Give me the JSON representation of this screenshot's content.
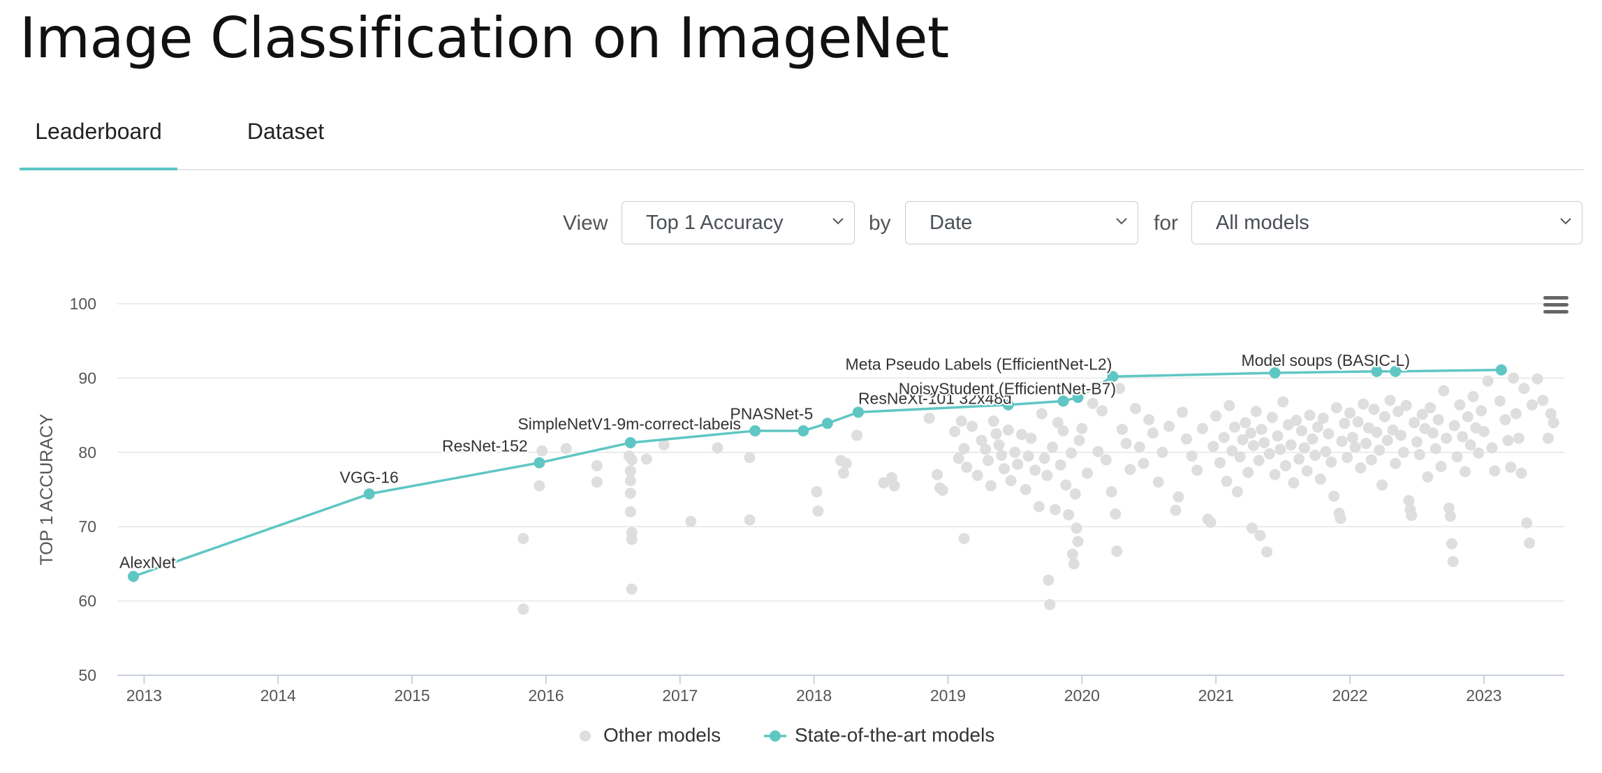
{
  "page": {
    "title": "Image Classification on ImageNet"
  },
  "tabs": [
    {
      "label": "Leaderboard",
      "active": true
    },
    {
      "label": "Dataset",
      "active": false
    }
  ],
  "controls": {
    "view_label": "View",
    "view_value": "Top 1 Accuracy",
    "by_label": "by",
    "by_value": "Date",
    "for_label": "for",
    "for_value": "All models"
  },
  "colors": {
    "accent": "#5fc6c4",
    "other": "#dedede",
    "grid": "#e6e6e6",
    "axis": "#c8cfe0"
  },
  "chart_data": {
    "type": "scatter",
    "title": "",
    "ylabel": "TOP 1 ACCURACY",
    "xlabel": "",
    "xlim": [
      2012.8,
      2023.6
    ],
    "ylim": [
      50,
      100
    ],
    "x_ticks": [
      2013,
      2014,
      2015,
      2016,
      2017,
      2018,
      2019,
      2020,
      2021,
      2022,
      2023
    ],
    "x_tick_labels": [
      "2013",
      "2014",
      "2015",
      "2016",
      "2017",
      "2018",
      "2019",
      "2020",
      "2021",
      "2022",
      "2023"
    ],
    "y_ticks": [
      50,
      60,
      70,
      80,
      90,
      100
    ],
    "y_tick_labels": [
      "50",
      "60",
      "70",
      "80",
      "90",
      "100"
    ],
    "grid": true,
    "legend_position": "bottom",
    "series": [
      {
        "name": "Other models",
        "color": "#dedede",
        "points": [
          [
            2015.83,
            68.4
          ],
          [
            2015.83,
            58.9
          ],
          [
            2015.95,
            75.5
          ],
          [
            2015.97,
            80.2
          ],
          [
            2016.15,
            80.5
          ],
          [
            2016.38,
            78.2
          ],
          [
            2016.38,
            76.0
          ],
          [
            2016.62,
            79.5
          ],
          [
            2016.63,
            77.5
          ],
          [
            2016.63,
            76.2
          ],
          [
            2016.63,
            74.5
          ],
          [
            2016.63,
            72.0
          ],
          [
            2016.64,
            69.2
          ],
          [
            2016.64,
            68.3
          ],
          [
            2016.64,
            61.6
          ],
          [
            2016.64,
            79.0
          ],
          [
            2016.75,
            79.1
          ],
          [
            2016.88,
            81.0
          ],
          [
            2017.08,
            70.7
          ],
          [
            2017.28,
            80.6
          ],
          [
            2017.52,
            70.9
          ],
          [
            2017.52,
            79.3
          ],
          [
            2018.02,
            74.7
          ],
          [
            2018.03,
            72.1
          ],
          [
            2018.2,
            78.9
          ],
          [
            2018.22,
            77.2
          ],
          [
            2018.24,
            78.5
          ],
          [
            2018.32,
            82.3
          ],
          [
            2018.52,
            75.9
          ],
          [
            2018.58,
            76.6
          ],
          [
            2018.6,
            75.5
          ],
          [
            2018.86,
            84.6
          ],
          [
            2018.92,
            77.0
          ],
          [
            2018.94,
            75.2
          ],
          [
            2018.96,
            74.9
          ],
          [
            2019.05,
            82.8
          ],
          [
            2019.08,
            79.2
          ],
          [
            2019.12,
            68.4
          ],
          [
            2019.1,
            84.2
          ],
          [
            2019.12,
            80.5
          ],
          [
            2019.14,
            78.0
          ],
          [
            2019.18,
            83.5
          ],
          [
            2019.22,
            76.9
          ],
          [
            2019.25,
            81.6
          ],
          [
            2019.28,
            80.4
          ],
          [
            2019.3,
            78.9
          ],
          [
            2019.32,
            75.5
          ],
          [
            2019.34,
            84.2
          ],
          [
            2019.36,
            82.5
          ],
          [
            2019.38,
            81.0
          ],
          [
            2019.4,
            79.6
          ],
          [
            2019.42,
            77.8
          ],
          [
            2019.45,
            83.0
          ],
          [
            2019.47,
            76.2
          ],
          [
            2019.5,
            80.0
          ],
          [
            2019.52,
            78.4
          ],
          [
            2019.55,
            82.4
          ],
          [
            2019.58,
            75.0
          ],
          [
            2019.6,
            79.5
          ],
          [
            2019.62,
            81.9
          ],
          [
            2019.65,
            77.6
          ],
          [
            2019.68,
            72.7
          ],
          [
            2019.7,
            85.2
          ],
          [
            2019.72,
            79.2
          ],
          [
            2019.74,
            76.9
          ],
          [
            2019.75,
            62.8
          ],
          [
            2019.76,
            59.5
          ],
          [
            2019.78,
            80.7
          ],
          [
            2019.8,
            72.3
          ],
          [
            2019.82,
            84.0
          ],
          [
            2019.84,
            78.3
          ],
          [
            2019.86,
            82.9
          ],
          [
            2019.88,
            75.6
          ],
          [
            2019.9,
            71.6
          ],
          [
            2019.92,
            79.9
          ],
          [
            2019.93,
            66.3
          ],
          [
            2019.94,
            65.0
          ],
          [
            2019.95,
            74.4
          ],
          [
            2019.96,
            69.8
          ],
          [
            2019.97,
            68.0
          ],
          [
            2019.98,
            81.6
          ],
          [
            2020.0,
            83.2
          ],
          [
            2020.04,
            77.2
          ],
          [
            2020.08,
            86.6
          ],
          [
            2020.12,
            80.1
          ],
          [
            2020.15,
            85.6
          ],
          [
            2020.18,
            79.0
          ],
          [
            2020.22,
            74.7
          ],
          [
            2020.25,
            71.7
          ],
          [
            2020.26,
            66.7
          ],
          [
            2020.28,
            88.6
          ],
          [
            2020.3,
            83.1
          ],
          [
            2020.33,
            81.2
          ],
          [
            2020.36,
            77.7
          ],
          [
            2020.4,
            85.9
          ],
          [
            2020.43,
            80.7
          ],
          [
            2020.46,
            78.5
          ],
          [
            2020.5,
            84.4
          ],
          [
            2020.53,
            82.6
          ],
          [
            2020.57,
            76.0
          ],
          [
            2020.6,
            80.0
          ],
          [
            2020.65,
            83.5
          ],
          [
            2020.7,
            72.2
          ],
          [
            2020.72,
            74.0
          ],
          [
            2020.75,
            85.4
          ],
          [
            2020.78,
            81.8
          ],
          [
            2020.82,
            79.5
          ],
          [
            2020.86,
            77.6
          ],
          [
            2020.9,
            83.2
          ],
          [
            2020.94,
            71.0
          ],
          [
            2020.96,
            70.6
          ],
          [
            2020.98,
            80.8
          ],
          [
            2021.0,
            84.9
          ],
          [
            2021.03,
            78.6
          ],
          [
            2021.06,
            82.0
          ],
          [
            2021.08,
            76.1
          ],
          [
            2021.1,
            86.3
          ],
          [
            2021.12,
            80.2
          ],
          [
            2021.14,
            83.4
          ],
          [
            2021.16,
            74.7
          ],
          [
            2021.18,
            79.4
          ],
          [
            2021.2,
            81.7
          ],
          [
            2021.22,
            84.0
          ],
          [
            2021.24,
            77.3
          ],
          [
            2021.26,
            82.6
          ],
          [
            2021.27,
            69.8
          ],
          [
            2021.28,
            80.9
          ],
          [
            2021.3,
            85.5
          ],
          [
            2021.32,
            78.9
          ],
          [
            2021.33,
            68.8
          ],
          [
            2021.34,
            83.1
          ],
          [
            2021.36,
            81.3
          ],
          [
            2021.38,
            66.6
          ],
          [
            2021.4,
            79.8
          ],
          [
            2021.42,
            84.7
          ],
          [
            2021.44,
            77.0
          ],
          [
            2021.46,
            82.2
          ],
          [
            2021.48,
            80.4
          ],
          [
            2021.5,
            86.8
          ],
          [
            2021.52,
            78.2
          ],
          [
            2021.54,
            83.7
          ],
          [
            2021.56,
            81.0
          ],
          [
            2021.58,
            75.9
          ],
          [
            2021.6,
            84.3
          ],
          [
            2021.62,
            79.1
          ],
          [
            2021.64,
            82.9
          ],
          [
            2021.66,
            80.6
          ],
          [
            2021.68,
            77.5
          ],
          [
            2021.7,
            85.0
          ],
          [
            2021.72,
            81.8
          ],
          [
            2021.74,
            79.6
          ],
          [
            2021.76,
            83.4
          ],
          [
            2021.78,
            76.4
          ],
          [
            2021.8,
            84.6
          ],
          [
            2021.82,
            80.1
          ],
          [
            2021.84,
            82.5
          ],
          [
            2021.86,
            78.7
          ],
          [
            2021.88,
            74.1
          ],
          [
            2021.9,
            86.0
          ],
          [
            2021.92,
            71.8
          ],
          [
            2021.93,
            71.1
          ],
          [
            2021.94,
            81.5
          ],
          [
            2021.96,
            83.9
          ],
          [
            2021.98,
            79.3
          ],
          [
            2022.0,
            85.3
          ],
          [
            2022.02,
            82.0
          ],
          [
            2022.04,
            80.7
          ],
          [
            2022.06,
            84.1
          ],
          [
            2022.08,
            77.9
          ],
          [
            2022.1,
            86.5
          ],
          [
            2022.12,
            81.2
          ],
          [
            2022.14,
            83.3
          ],
          [
            2022.16,
            79.0
          ],
          [
            2022.18,
            85.8
          ],
          [
            2022.2,
            82.7
          ],
          [
            2022.22,
            80.3
          ],
          [
            2022.24,
            75.6
          ],
          [
            2022.26,
            84.8
          ],
          [
            2022.28,
            81.6
          ],
          [
            2022.3,
            87.0
          ],
          [
            2022.32,
            83.0
          ],
          [
            2022.34,
            78.5
          ],
          [
            2022.36,
            85.5
          ],
          [
            2022.38,
            82.3
          ],
          [
            2022.4,
            80.0
          ],
          [
            2022.42,
            86.3
          ],
          [
            2022.44,
            73.5
          ],
          [
            2022.45,
            72.3
          ],
          [
            2022.46,
            71.5
          ],
          [
            2022.48,
            84.0
          ],
          [
            2022.5,
            81.4
          ],
          [
            2022.52,
            79.7
          ],
          [
            2022.54,
            85.1
          ],
          [
            2022.56,
            83.2
          ],
          [
            2022.58,
            76.7
          ],
          [
            2022.6,
            86.0
          ],
          [
            2022.62,
            82.6
          ],
          [
            2022.64,
            80.5
          ],
          [
            2022.66,
            84.4
          ],
          [
            2022.68,
            78.1
          ],
          [
            2022.7,
            88.3
          ],
          [
            2022.72,
            81.9
          ],
          [
            2022.74,
            72.5
          ],
          [
            2022.75,
            71.4
          ],
          [
            2022.76,
            67.7
          ],
          [
            2022.77,
            65.3
          ],
          [
            2022.78,
            83.6
          ],
          [
            2022.8,
            79.4
          ],
          [
            2022.82,
            86.4
          ],
          [
            2022.84,
            82.1
          ],
          [
            2022.86,
            77.4
          ],
          [
            2022.88,
            84.8
          ],
          [
            2022.9,
            81.0
          ],
          [
            2022.92,
            87.5
          ],
          [
            2022.94,
            83.3
          ],
          [
            2022.96,
            79.9
          ],
          [
            2022.98,
            85.6
          ],
          [
            2023.0,
            82.8
          ],
          [
            2023.03,
            89.6
          ],
          [
            2023.06,
            80.6
          ],
          [
            2023.08,
            77.5
          ],
          [
            2023.12,
            86.9
          ],
          [
            2023.16,
            84.4
          ],
          [
            2023.18,
            81.6
          ],
          [
            2023.2,
            78.0
          ],
          [
            2023.22,
            90.0
          ],
          [
            2023.24,
            85.2
          ],
          [
            2023.26,
            81.9
          ],
          [
            2023.28,
            77.2
          ],
          [
            2023.3,
            88.6
          ],
          [
            2023.32,
            70.5
          ],
          [
            2023.34,
            67.8
          ],
          [
            2023.36,
            86.4
          ],
          [
            2023.4,
            89.9
          ],
          [
            2023.44,
            87.0
          ],
          [
            2023.48,
            81.9
          ],
          [
            2023.5,
            85.2
          ],
          [
            2023.52,
            84.0
          ]
        ]
      },
      {
        "name": "State-of-the-art models",
        "color": "#5fc6c4",
        "points": [
          [
            2012.92,
            63.3
          ],
          [
            2014.68,
            74.4
          ],
          [
            2015.95,
            78.6
          ],
          [
            2016.63,
            81.3
          ],
          [
            2017.56,
            82.9
          ],
          [
            2017.92,
            82.9
          ],
          [
            2018.1,
            83.9
          ],
          [
            2018.33,
            85.4
          ],
          [
            2019.45,
            86.4
          ],
          [
            2019.86,
            86.9
          ],
          [
            2019.97,
            87.4
          ],
          [
            2020.23,
            90.2
          ],
          [
            2021.44,
            90.7
          ],
          [
            2022.2,
            90.9
          ],
          [
            2022.34,
            90.9
          ],
          [
            2023.13,
            91.1
          ]
        ],
        "labels": [
          {
            "text": "AlexNet",
            "x": 2012.92,
            "y": 63.3
          },
          {
            "text": "VGG-16",
            "x": 2014.68,
            "y": 74.4
          },
          {
            "text": "ResNet-152",
            "x": 2015.95,
            "y": 78.6
          },
          {
            "text": "SimpleNetV1-9m-correct-labels",
            "x": 2017.56,
            "y": 82.9
          },
          {
            "text": "PNASNet-5",
            "x": 2018.1,
            "y": 83.9
          },
          {
            "text": "ResNeXt-101 32x48d",
            "x": 2018.33,
            "y": 85.4
          },
          {
            "text": "NoisyStudent (EfficientNet-B7)",
            "x": 2019.86,
            "y": 86.9
          },
          {
            "text": "Meta Pseudo Labels (EfficientNet-L2)",
            "x": 2020.23,
            "y": 90.2
          },
          {
            "text": "Model soups (BASIC-L)",
            "x": 2022.34,
            "y": 90.9
          }
        ]
      }
    ]
  }
}
